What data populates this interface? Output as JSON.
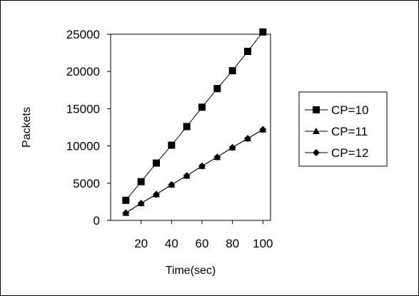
{
  "chart_data": {
    "type": "line",
    "xlabel": "Time(sec)",
    "ylabel": "Packets",
    "xlim": [
      0,
      105
    ],
    "ylim": [
      0,
      25000
    ],
    "x_ticks": [
      20,
      40,
      60,
      80,
      100
    ],
    "x_tick_labels": [
      "20",
      "40",
      "60",
      "80",
      "100"
    ],
    "y_ticks": [
      0,
      5000,
      10000,
      15000,
      20000,
      25000
    ],
    "y_tick_labels": [
      "0",
      "5000",
      "10000",
      "15000",
      "20000",
      "25000"
    ],
    "grid": false,
    "legend_position": "right",
    "x": [
      10,
      20,
      30,
      40,
      50,
      60,
      70,
      80,
      90,
      100
    ],
    "series": [
      {
        "name": "CP=10",
        "marker": "square",
        "values": [
          2700,
          5200,
          7700,
          10100,
          12600,
          15200,
          17700,
          20100,
          22700,
          25300
        ]
      },
      {
        "name": "CP=11",
        "marker": "triangle",
        "values": [
          1000,
          2300,
          3500,
          4800,
          6000,
          7300,
          8500,
          9800,
          11000,
          12200
        ]
      },
      {
        "name": "CP=12",
        "marker": "diamond",
        "values": [
          1000,
          2300,
          3500,
          4800,
          6000,
          7300,
          8500,
          9800,
          11000,
          12200
        ]
      }
    ]
  }
}
